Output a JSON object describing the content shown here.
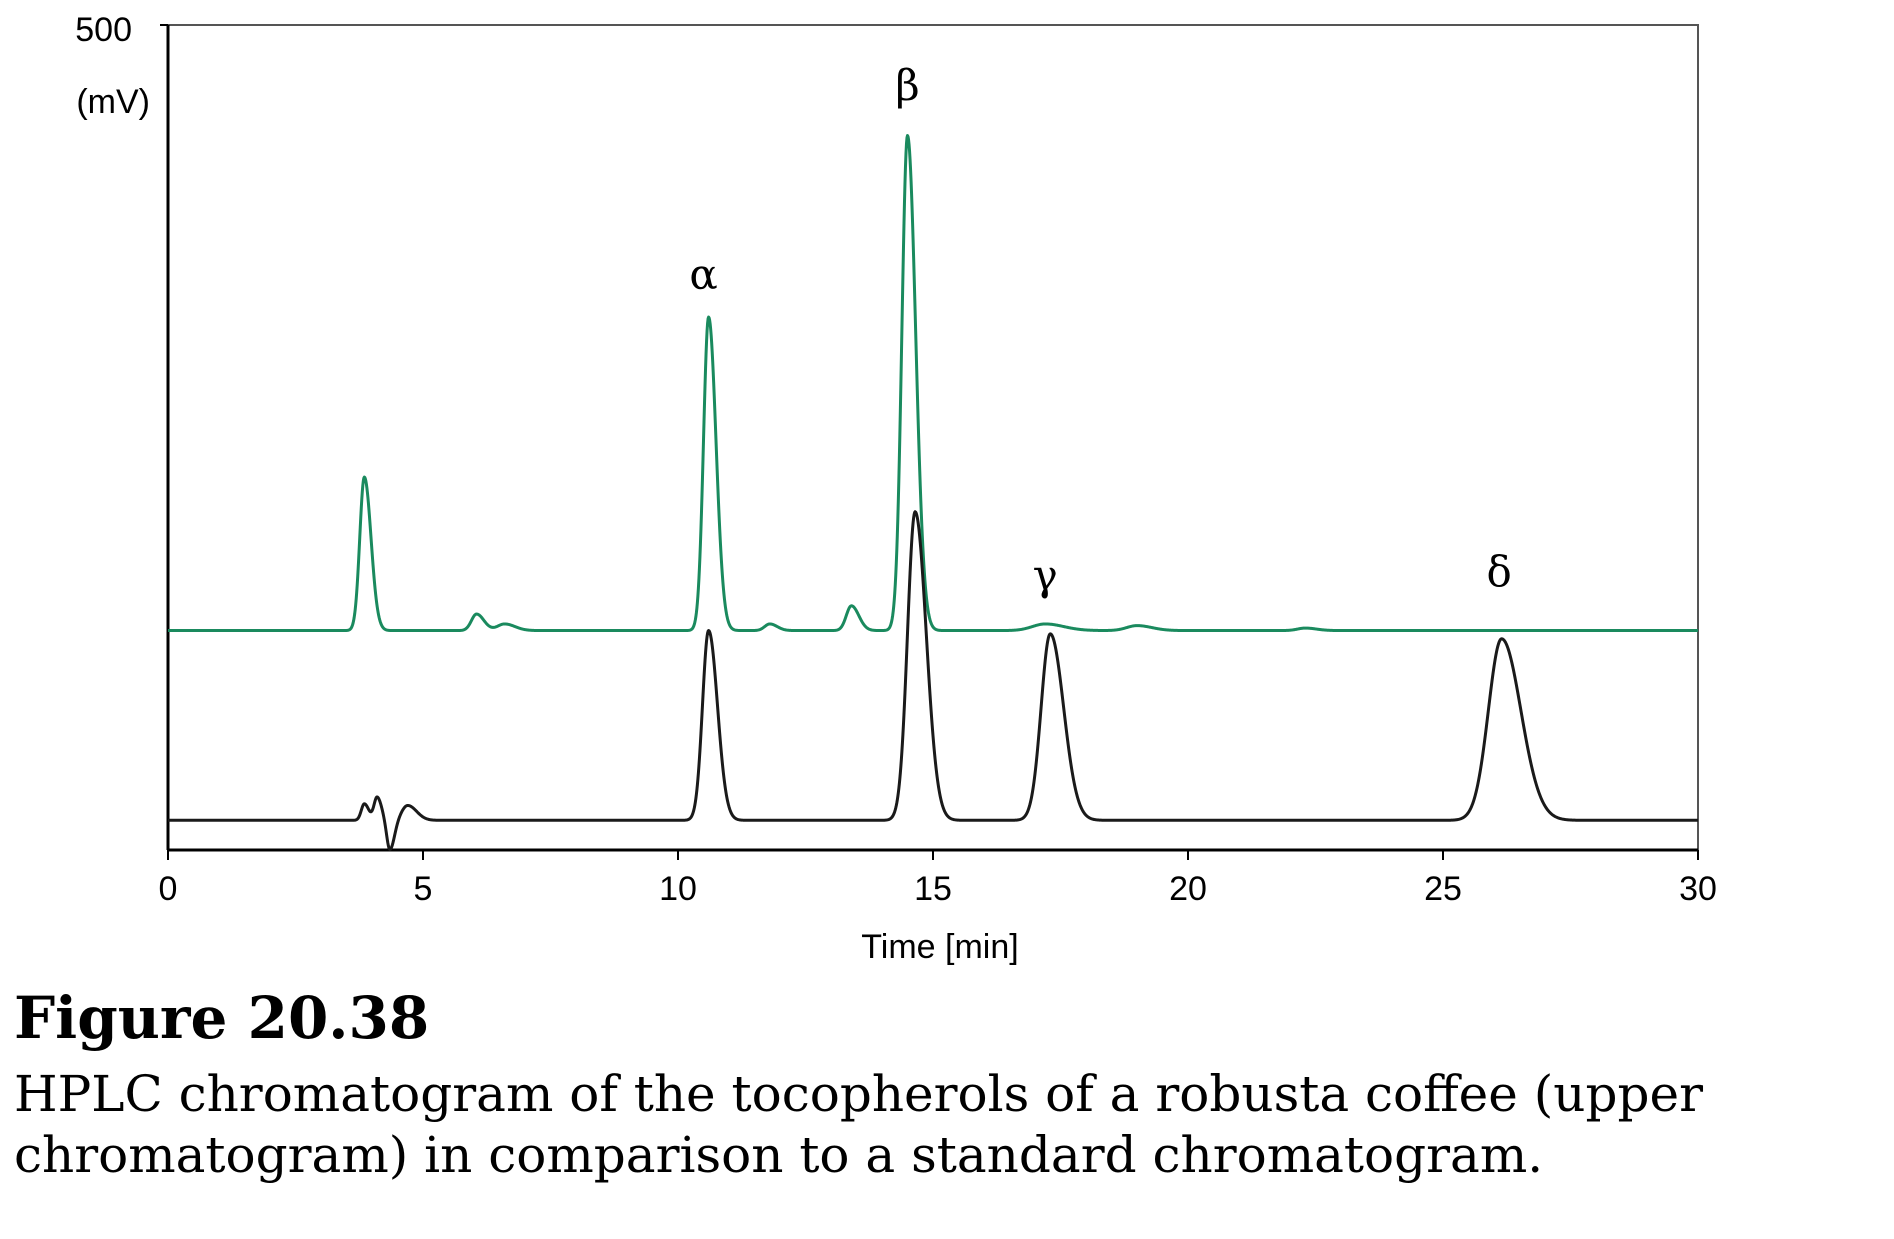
{
  "chart_data": {
    "type": "line",
    "title": "",
    "xlabel": "Time [min]",
    "ylabel": "(mV)",
    "y_max_label": "500",
    "xlim": [
      0,
      30
    ],
    "ylim": [
      0,
      500
    ],
    "x_ticks": [
      0,
      5,
      10,
      15,
      20,
      25,
      30
    ],
    "grid": false,
    "peak_labels": [
      {
        "label": "α",
        "time": 10.5,
        "value": 340
      },
      {
        "label": "β",
        "time": 14.5,
        "value": 455
      },
      {
        "label": "γ",
        "time": 17.2,
        "value": 158
      },
      {
        "label": "δ",
        "time": 26.1,
        "value": 160
      }
    ],
    "series": [
      {
        "name": "robusta coffee (upper chromatogram)",
        "color": "#1a8a5e",
        "baseline": 133,
        "peaks": [
          {
            "t": 3.85,
            "h": 93,
            "w": 0.09
          },
          {
            "t": 6.05,
            "h": 10,
            "w": 0.1
          },
          {
            "t": 6.6,
            "h": 4,
            "w": 0.14
          },
          {
            "t": 10.6,
            "h": 190,
            "w": 0.1
          },
          {
            "t": 11.8,
            "h": 4,
            "w": 0.1
          },
          {
            "t": 13.4,
            "h": 15,
            "w": 0.1
          },
          {
            "t": 14.5,
            "h": 300,
            "w": 0.11
          },
          {
            "t": 17.2,
            "h": 4,
            "w": 0.25
          },
          {
            "t": 19.0,
            "h": 3,
            "w": 0.2
          },
          {
            "t": 22.3,
            "h": 1.5,
            "w": 0.15
          }
        ]
      },
      {
        "name": "standard chromatogram",
        "color": "#1a1a1a",
        "baseline": 18,
        "peaks": [
          {
            "t": 3.85,
            "h": 10,
            "w": 0.06
          },
          {
            "t": 4.1,
            "h": 14,
            "w": 0.06
          },
          {
            "t": 4.35,
            "h": -18,
            "w": 0.06
          },
          {
            "t": 4.7,
            "h": 9,
            "w": 0.12
          },
          {
            "t": 10.6,
            "h": 115,
            "w": 0.12
          },
          {
            "t": 14.65,
            "h": 187,
            "w": 0.15
          },
          {
            "t": 17.3,
            "h": 113,
            "w": 0.18
          },
          {
            "t": 26.15,
            "h": 110,
            "w": 0.26
          }
        ]
      }
    ]
  },
  "caption": {
    "title": "Figure 20.38",
    "text": "HPLC chromatogram of the tocopherols of a robusta coffee (upper chromatogram) in comparison to a standard chromatogram."
  }
}
